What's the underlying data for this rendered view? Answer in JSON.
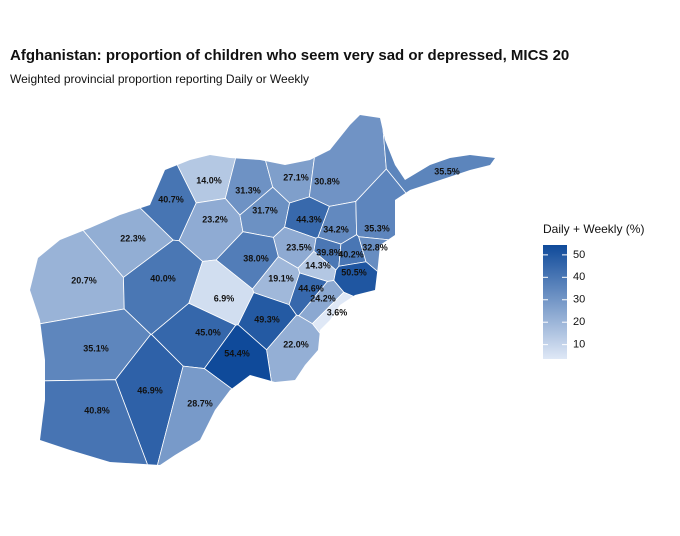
{
  "chart_data": {
    "type": "choropleth",
    "title": "Afghanistan: proportion of children who seem very sad or depressed, MICS 20",
    "subtitle": "Weighted provincial proportion reporting Daily or Weekly",
    "legend_title": "Daily + Weekly (%)",
    "values": [
      14.0,
      31.3,
      27.1,
      30.8,
      35.5,
      40.7,
      23.2,
      31.7,
      44.3,
      34.2,
      35.3,
      22.3,
      23.5,
      39.8,
      40.2,
      32.8,
      38.0,
      14.3,
      50.5,
      20.7,
      40.0,
      19.1,
      6.9,
      44.6,
      24.2,
      3.6,
      49.3,
      45.0,
      22.0,
      54.4,
      35.1,
      46.9,
      28.7,
      40.8
    ],
    "value_labels": [
      "14.0%",
      "31.3%",
      "27.1%",
      "30.8%",
      "35.5%",
      "40.7%",
      "23.2%",
      "31.7%",
      "44.3%",
      "34.2%",
      "35.3%",
      "22.3%",
      "23.5%",
      "39.8%",
      "40.2%",
      "32.8%",
      "38.0%",
      "14.3%",
      "50.5%",
      "20.7%",
      "40.0%",
      "19.1%",
      "6.9%",
      "44.6%",
      "24.2%",
      "3.6%",
      "49.3%",
      "45.0%",
      "22.0%",
      "54.4%",
      "35.1%",
      "46.9%",
      "28.7%",
      "40.8%"
    ],
    "clim": [
      3.6,
      54.4
    ],
    "ticks": [
      10,
      20,
      30,
      40,
      50
    ],
    "low_color": "#dfe8f6",
    "high_color": "#0f4a9a"
  }
}
